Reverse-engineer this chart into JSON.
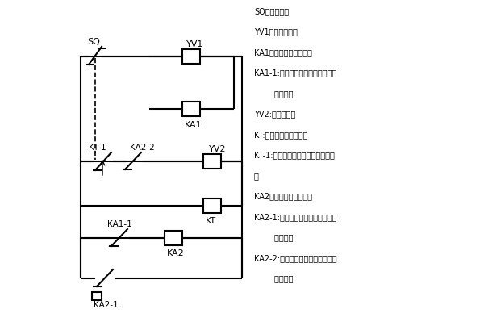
{
  "bg_color": "#ffffff",
  "line_color": "#000000",
  "lw": 1.5,
  "legend_lines": [
    "SQ：脚踏开关",
    "YV1：下行电磁阀",
    "KA1：第一个中间继电器",
    "KA1-1:第一个中间继电器的第一组",
    "        常开触头",
    "YV2:上行电磁阀",
    "KT:通电延时时间继电器",
    "KT-1:时间继电器延时断开的常闭触",
    "头",
    "KA2：第二个中间继电器",
    "KA2-1:第二个中间继电器的第一组",
    "        常开触头",
    "KA2-2:第二个中间继电器的第二组",
    "        常开触头"
  ],
  "font_size": 7.0,
  "label_font_size": 8.0,
  "fig_w": 6.0,
  "fig_h": 4.09,
  "dpi": 100
}
